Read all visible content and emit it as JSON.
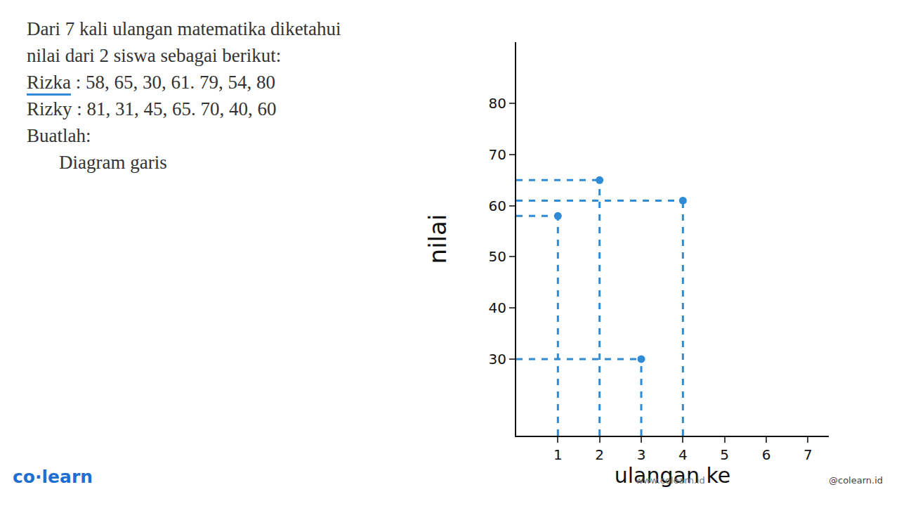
{
  "chart_data": {
    "type": "scatter",
    "x_label": "ulangan ke",
    "y_label": "nilai",
    "x": [
      1,
      2,
      3,
      4,
      5,
      6,
      7
    ],
    "values": [
      58,
      65,
      30,
      61,
      null,
      null,
      null
    ],
    "color": "#2f8bd6",
    "marker": "circle",
    "line_style": "dashed",
    "xlim": [
      0,
      7.5
    ],
    "xticks": [
      1,
      2,
      3,
      4,
      5,
      6,
      7
    ],
    "ylim": [
      15,
      92
    ],
    "yticks": [
      30,
      40,
      50,
      60,
      70,
      80
    ],
    "grid": false,
    "legend": "none"
  },
  "problem": {
    "lines": [
      "Dari 7 kali ulangan matematika diketahui",
      "nilai dari 2 siswa sebagai berikut:"
    ],
    "rows": [
      {
        "name": "Rizka",
        "values": " : 58, 65, 30, 61. 79, 54, 80"
      },
      {
        "name": "Rizky",
        "values": " : 81, 31, 45, 65. 70, 40, 60"
      }
    ],
    "task": "Buatlah:",
    "item": "Diagram garis"
  },
  "footer": {
    "brand": "co·learn",
    "site": "www.colearn.id",
    "social": "@colearn.id"
  }
}
